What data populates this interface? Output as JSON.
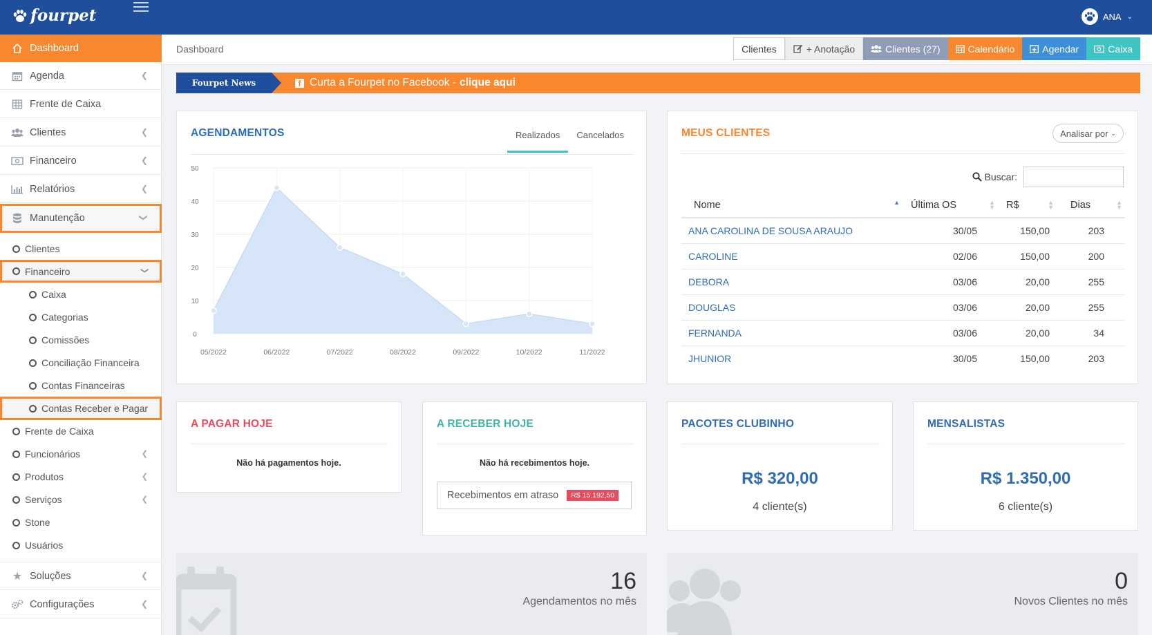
{
  "brand": {
    "name": "fourpet"
  },
  "user": {
    "name": "ANA"
  },
  "colors": {
    "primary": "#1e4e9c",
    "accent": "#f7882f",
    "teal": "#3fc3c3",
    "link": "#2e6db4",
    "danger": "#e74c5e"
  },
  "sidebar": {
    "items": [
      {
        "label": "Dashboard",
        "icon": "home-icon"
      },
      {
        "label": "Agenda",
        "icon": "calendar-icon"
      },
      {
        "label": "Frente de Caixa",
        "icon": "table-icon"
      },
      {
        "label": "Clientes",
        "icon": "users-icon"
      },
      {
        "label": "Financeiro",
        "icon": "money-icon"
      },
      {
        "label": "Relatórios",
        "icon": "bar-chart-icon"
      },
      {
        "label": "Manutenção",
        "icon": "database-icon"
      }
    ],
    "manutencao": [
      "Clientes",
      "Financeiro"
    ],
    "financeiro_sub": [
      "Caixa",
      "Categorias",
      "Comissões",
      "Conciliação Financeira",
      "Contas Financeiras",
      "Contas Receber e Pagar"
    ],
    "manutencao_rest": [
      "Frente de Caixa",
      "Funcionários",
      "Produtos",
      "Serviços",
      "Stone",
      "Usuários"
    ],
    "bottom": [
      {
        "label": "Soluções",
        "icon": "star-icon"
      },
      {
        "label": "Configurações",
        "icon": "cogs-icon"
      }
    ]
  },
  "header": {
    "breadcrumb": "Dashboard",
    "actions": {
      "clientes": "Clientes",
      "anotacao": "+ Anotação",
      "clientes_count": "Clientes (27)",
      "calendario": "Calendário",
      "agendar": "Agendar",
      "caixa": "Caixa"
    }
  },
  "news": {
    "label": "Fourpet News",
    "text": "Curta a Fourpet no Facebook -",
    "link": "clique aqui"
  },
  "agendamentos": {
    "title": "AGENDAMENTOS",
    "tabs": [
      "Realizados",
      "Cancelados"
    ]
  },
  "chart_data": {
    "type": "area",
    "x": [
      "05/2022",
      "06/2022",
      "07/2022",
      "08/2022",
      "09/2022",
      "10/2022",
      "11/2022"
    ],
    "y_ticks": [
      0,
      10,
      20,
      30,
      40,
      50
    ],
    "ylim": [
      0,
      50
    ],
    "series": [
      {
        "values": [
          7,
          44,
          26,
          18,
          3,
          6,
          3
        ]
      }
    ],
    "color": "#d6e6f8",
    "grid": true
  },
  "meus_clientes": {
    "title": "MEUS CLIENTES",
    "analisar": "Analisar por",
    "buscar_label": "Buscar:",
    "columns": [
      "Nome",
      "Última OS",
      "R$",
      "Dias"
    ],
    "rows": [
      [
        "ANA CAROLINA DE SOUSA ARAUJO",
        "30/05",
        "150,00",
        "203"
      ],
      [
        "CAROLINE",
        "02/06",
        "150,00",
        "200"
      ],
      [
        "DEBORA",
        "03/06",
        "20,00",
        "255"
      ],
      [
        "DOUGLAS",
        "03/06",
        "20,00",
        "255"
      ],
      [
        "FERNANDA",
        "03/06",
        "20,00",
        "34"
      ],
      [
        "JHUNIOR",
        "30/05",
        "150,00",
        "203"
      ]
    ]
  },
  "a_pagar": {
    "title": "A PAGAR HOJE",
    "message": "Não há pagamentos hoje."
  },
  "a_receber": {
    "title": "A RECEBER HOJE",
    "message": "Não há recebimentos hoje.",
    "atraso_label": "Recebimentos em atraso",
    "atraso_value": "R$ 15.192,50"
  },
  "pacotes": {
    "title": "PACOTES CLUBINHO",
    "value": "R$ 320,00",
    "clients": "4 cliente(s)"
  },
  "mensalistas": {
    "title": "MENSALISTAS",
    "value": "R$ 1.350,00",
    "clients": "6 cliente(s)"
  },
  "stats": {
    "agendamentos_mes": {
      "value": "16",
      "label": "Agendamentos no mês"
    },
    "novos_clientes": {
      "value": "0",
      "label": "Novos Clientes no mês"
    }
  }
}
